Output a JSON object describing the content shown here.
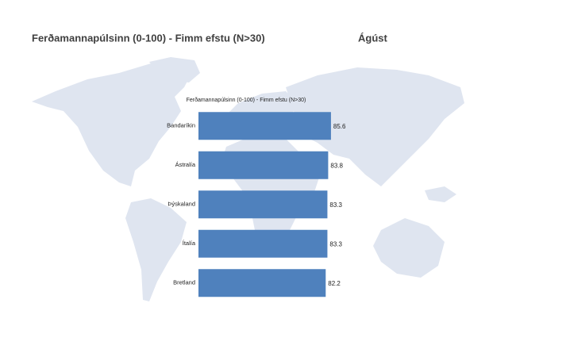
{
  "chart_data": {
    "type": "bar",
    "orientation": "horizontal",
    "title": "Ferðamannapúlsinn (0-100) - Fimm efstu (N>30)",
    "period": "Ágúst",
    "subtitle": "Ferðamannapúlsinn (0-100) - Fimm efstu (N>30)",
    "categories": [
      "Bandaríkin",
      "Ástralía",
      "Þýskaland",
      "Ítalía",
      "Bretland"
    ],
    "values": [
      85.6,
      83.8,
      83.3,
      83.3,
      82.2
    ],
    "color": "#4f81bd",
    "xlim": [
      0,
      100
    ]
  }
}
